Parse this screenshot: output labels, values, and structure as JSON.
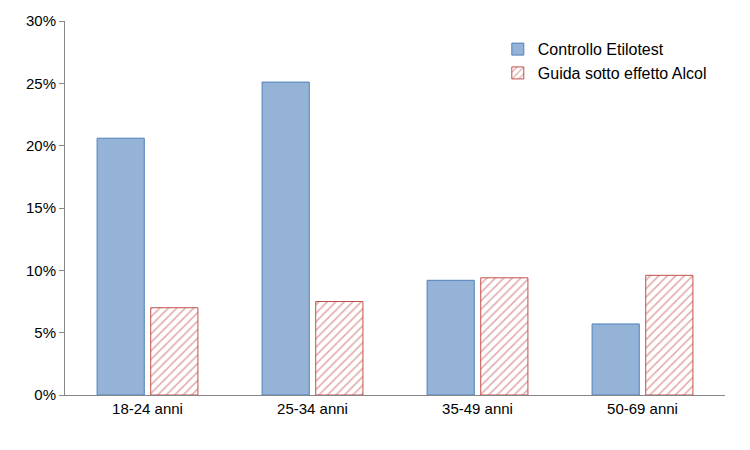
{
  "chart_data": {
    "type": "bar",
    "categories": [
      "18-24 anni",
      "25-34 anni",
      "35-49 anni",
      "50-69 anni"
    ],
    "series": [
      {
        "name": "Controllo Etilotest",
        "color": "#95b3d7",
        "values": [
          20.6,
          25.1,
          9.2,
          5.7
        ]
      },
      {
        "name": "Guida sotto effetto Alcol",
        "color": "#c0504d",
        "marker": "hatch",
        "values": [
          7.0,
          7.5,
          9.4,
          9.6
        ]
      }
    ],
    "ylim": [
      0,
      30
    ],
    "yticks": [
      {
        "value": 0,
        "label": "0%"
      },
      {
        "value": 5,
        "label": "5%"
      },
      {
        "value": 10,
        "label": "10%"
      },
      {
        "value": 15,
        "label": "15%"
      },
      {
        "value": 20,
        "label": "20%"
      },
      {
        "value": 25,
        "label": "25%"
      },
      {
        "value": 30,
        "label": "30%"
      }
    ],
    "grid": false,
    "legend": "upper right"
  }
}
